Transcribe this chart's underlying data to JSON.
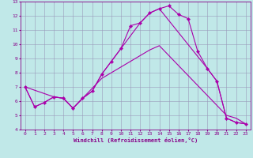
{
  "xlabel": "Windchill (Refroidissement éolien,°C)",
  "xlim": [
    -0.5,
    23.5
  ],
  "ylim": [
    4,
    13
  ],
  "xticks": [
    0,
    1,
    2,
    3,
    4,
    5,
    6,
    7,
    8,
    9,
    10,
    11,
    12,
    13,
    14,
    15,
    16,
    17,
    18,
    19,
    20,
    21,
    22,
    23
  ],
  "yticks": [
    4,
    5,
    6,
    7,
    8,
    9,
    10,
    11,
    12,
    13
  ],
  "bg_color": "#c0e8e8",
  "line_color": "#aa00aa",
  "line1_x": [
    0,
    1,
    2,
    3,
    4,
    5,
    6,
    7,
    8,
    9,
    10,
    11,
    12,
    13,
    14,
    15,
    16,
    17,
    18,
    19,
    20,
    21,
    22,
    23
  ],
  "line1_y": [
    7.0,
    5.6,
    5.9,
    6.3,
    6.2,
    5.5,
    6.2,
    6.7,
    7.9,
    8.8,
    9.7,
    11.3,
    11.5,
    12.2,
    12.5,
    12.7,
    12.1,
    11.8,
    9.5,
    8.3,
    7.4,
    4.8,
    4.5,
    4.4
  ],
  "line2_x": [
    0,
    1,
    2,
    3,
    4,
    5,
    6,
    7,
    8,
    9,
    10,
    11,
    12,
    13,
    14,
    15,
    16,
    17,
    18,
    19,
    20,
    21,
    22,
    23
  ],
  "line2_y": [
    7.0,
    5.6,
    5.9,
    6.3,
    6.2,
    5.5,
    6.2,
    6.9,
    7.6,
    8.0,
    8.4,
    8.8,
    9.2,
    9.6,
    9.9,
    9.2,
    8.5,
    7.8,
    7.1,
    6.4,
    5.7,
    5.0,
    4.8,
    4.4
  ],
  "line3_x": [
    0,
    3,
    4,
    5,
    6,
    7,
    8,
    12,
    13,
    14,
    19,
    20,
    21,
    22,
    23
  ],
  "line3_y": [
    7.0,
    6.3,
    6.2,
    5.5,
    6.2,
    6.7,
    7.9,
    11.5,
    12.2,
    12.5,
    8.3,
    7.4,
    4.8,
    4.5,
    4.4
  ],
  "grid_color": "#9999bb",
  "tick_color": "#880088",
  "label_color": "#880088",
  "tick_fontsize": 4.5,
  "xlabel_fontsize": 5.0,
  "lw": 0.8,
  "marker_size": 2.2
}
